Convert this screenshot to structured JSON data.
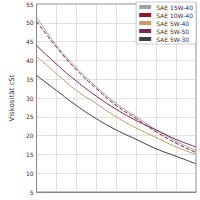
{
  "chart_data": {
    "type": "line",
    "y_label": "Viskosität cSt",
    "categories": [
      null,
      null,
      null,
      null,
      null,
      null,
      null,
      null,
      null
    ],
    "series": [
      {
        "name": "SAE 15W-40",
        "color": "#a0a0a0",
        "line_style": "solid",
        "values": [
          51.5,
          44,
          38,
          33,
          28.5,
          25,
          21.5,
          18.5,
          16
        ]
      },
      {
        "name": "SAE 10W-40",
        "color": "#8b1a2b",
        "line_style": "dashed",
        "values": [
          50.4,
          43.5,
          37.5,
          32.5,
          28,
          24.5,
          21,
          18,
          15.5
        ]
      },
      {
        "name": "SAE 5W-40",
        "color": "#c89a6a",
        "line_style": "solid",
        "values": [
          41,
          36.5,
          32,
          28.5,
          25,
          22,
          19.5,
          17,
          15
        ]
      },
      {
        "name": "SAE 5W-50",
        "color": "#7a2a5a",
        "line_style": "solid",
        "values": [
          44,
          39,
          34.5,
          30.5,
          27,
          24,
          21.5,
          19,
          17
        ]
      },
      {
        "name": "SAE 5W-30",
        "color": "#404040",
        "line_style": "solid",
        "values": [
          36,
          32,
          28,
          24.5,
          21.5,
          19,
          16.5,
          14.5,
          12.5
        ]
      }
    ],
    "ylim": [
      5,
      55
    ],
    "yticks": [
      5,
      10,
      15,
      20,
      25,
      30,
      35,
      40,
      45,
      50,
      55
    ],
    "grid": true,
    "legend": "top-right",
    "tick_labels": "y"
  }
}
